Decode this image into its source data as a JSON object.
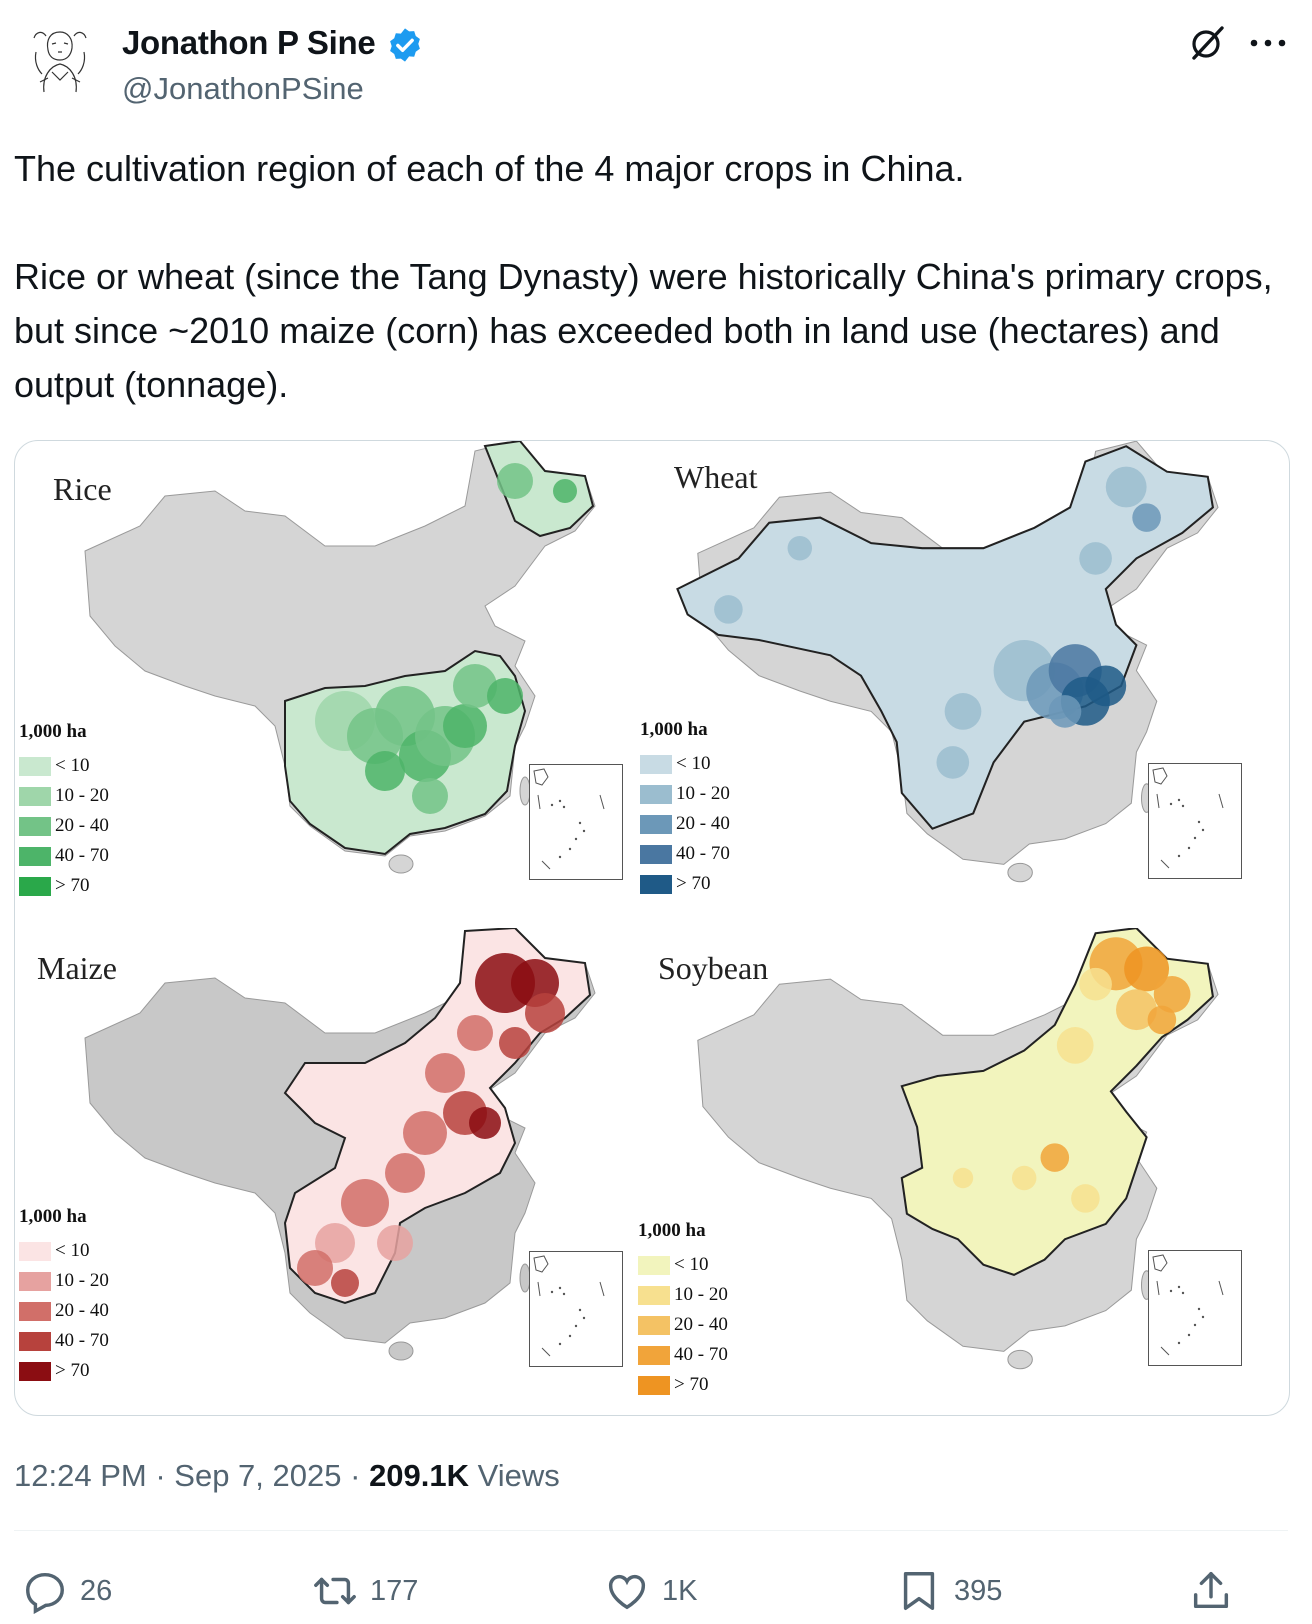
{
  "author": {
    "name": "Jonathon P Sine",
    "handle": "@JonathonPSine",
    "verified": true,
    "avatar_icon": "sketch-portrait-avatar"
  },
  "header_icons": {
    "grok": "grok-icon",
    "more": "more-options-icon"
  },
  "tweet": {
    "paragraphs": [
      "The cultivation region of each of the 4 major crops in China.",
      "Rice or wheat (since the Tang Dynasty) were historically China's primary crops, but since ~2010 maize (corn) has exceeded both in land use (hectares) and output (tonnage)."
    ]
  },
  "media": {
    "legend_title": "1,000 ha",
    "legend_labels": [
      "< 10",
      "10 - 20",
      "20 - 40",
      "40 - 70",
      "> 70"
    ],
    "panels": [
      {
        "title": "Rice",
        "colors": [
          "#c9e8cf",
          "#9fd6aa",
          "#73c387",
          "#4db469",
          "#2aa84a"
        ],
        "base": "#d5d5d5"
      },
      {
        "title": "Wheat",
        "colors": [
          "#c8dbe4",
          "#9bbdcf",
          "#6c98b8",
          "#4a77a1",
          "#1f5a87"
        ],
        "base": "#d5d5d5"
      },
      {
        "title": "Maize",
        "colors": [
          "#fbe4e4",
          "#e6a2a0",
          "#d16f69",
          "#b7423d",
          "#8b0d12"
        ],
        "base": "#c8c8c8"
      },
      {
        "title": "Soybean",
        "colors": [
          "#f2f4bd",
          "#f7e08f",
          "#f4c264",
          "#f1a43a",
          "#ee9422"
        ],
        "base": "#d5d5d5"
      }
    ]
  },
  "meta": {
    "time": "12:24 PM",
    "separator": "·",
    "date": "Sep 7, 2025",
    "views_count": "209.1K",
    "views_label": "Views"
  },
  "actions": {
    "replies": "26",
    "reposts": "177",
    "likes": "1K",
    "bookmarks": "395"
  },
  "colors": {
    "text": "#0f1419",
    "secondary": "#536471",
    "verified": "#1d9bf0",
    "border": "#cfd9de"
  }
}
